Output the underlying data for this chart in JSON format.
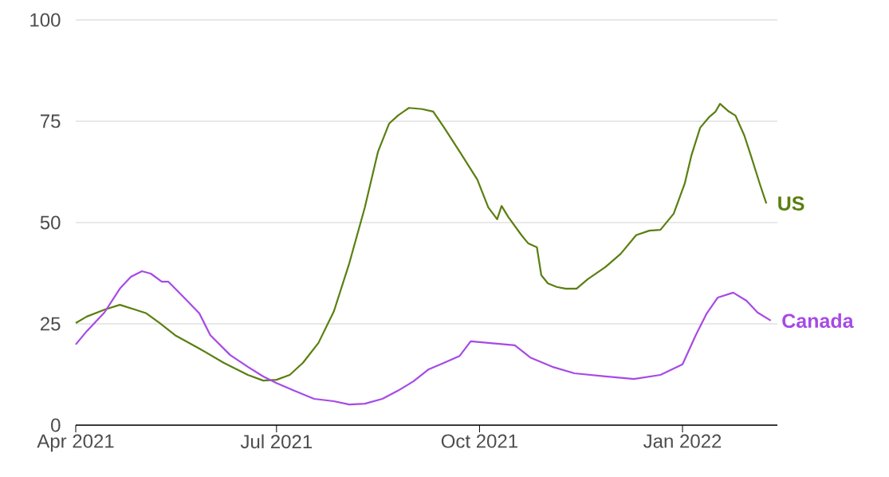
{
  "chart_data": {
    "type": "line",
    "xlim": [
      "2021-04-01",
      "2022-02-13"
    ],
    "xticks": [
      {
        "value": "2021-04-01",
        "label": "Apr 2021"
      },
      {
        "value": "2021-07-01",
        "label": "Jul 2021"
      },
      {
        "value": "2021-10-01",
        "label": "Oct 2021"
      },
      {
        "value": "2022-01-01",
        "label": "Jan 2022"
      }
    ],
    "ylim": [
      0,
      100
    ],
    "yticks": [
      0,
      25,
      50,
      75,
      100
    ],
    "grid": "y",
    "legend": false,
    "marker": "none",
    "line_style": "solid",
    "series": [
      {
        "name": "US",
        "color": "#5a7f10",
        "x": [
          "2021-04-01",
          "2021-04-06",
          "2021-04-14",
          "2021-04-21",
          "2021-04-28",
          "2021-05-03",
          "2021-05-09",
          "2021-05-16",
          "2021-05-27",
          "2021-06-07",
          "2021-06-18",
          "2021-06-25",
          "2021-07-01",
          "2021-07-07",
          "2021-07-13",
          "2021-07-20",
          "2021-07-27",
          "2021-08-03",
          "2021-08-10",
          "2021-08-16",
          "2021-08-21",
          "2021-08-25",
          "2021-08-30",
          "2021-09-05",
          "2021-09-10",
          "2021-09-15",
          "2021-09-22",
          "2021-09-30",
          "2021-10-05",
          "2021-10-09",
          "2021-10-11",
          "2021-10-14",
          "2021-10-20",
          "2021-10-23",
          "2021-10-27",
          "2021-10-29",
          "2021-11-01",
          "2021-11-05",
          "2021-11-09",
          "2021-11-14",
          "2021-11-19",
          "2021-11-27",
          "2021-12-04",
          "2021-12-11",
          "2021-12-17",
          "2021-12-22",
          "2021-12-28",
          "2022-01-02",
          "2022-01-05",
          "2022-01-09",
          "2022-01-13",
          "2022-01-16",
          "2022-01-18",
          "2022-01-22",
          "2022-01-25",
          "2022-01-29",
          "2022-02-01",
          "2022-02-05",
          "2022-02-08"
        ],
        "values": [
          25.2,
          26.8,
          28.5,
          29.7,
          28.5,
          27.6,
          25.2,
          22.2,
          18.9,
          15.4,
          12.4,
          11,
          11.2,
          12.4,
          15.4,
          20.3,
          28.1,
          40,
          53.7,
          67.5,
          74.4,
          76.4,
          78.3,
          78,
          77.4,
          73.4,
          67.5,
          60.6,
          53.7,
          50.8,
          54.1,
          51.4,
          46.9,
          44.9,
          43.9,
          37,
          35,
          34.1,
          33.7,
          33.7,
          36,
          39,
          42.3,
          46.9,
          48,
          48.2,
          52.2,
          59.6,
          66.5,
          73.4,
          76,
          77.4,
          79.3,
          77.4,
          76.4,
          71.5,
          66.5,
          59.6,
          54.7
        ]
      },
      {
        "name": "Canada",
        "color": "#a64ae6",
        "x": [
          "2021-04-01",
          "2021-04-06",
          "2021-04-14",
          "2021-04-21",
          "2021-04-26",
          "2021-05-01",
          "2021-05-05",
          "2021-05-10",
          "2021-05-13",
          "2021-05-19",
          "2021-05-27",
          "2021-06-01",
          "2021-06-10",
          "2021-06-18",
          "2021-06-25",
          "2021-07-01",
          "2021-07-09",
          "2021-07-18",
          "2021-07-27",
          "2021-08-03",
          "2021-08-10",
          "2021-08-18",
          "2021-08-25",
          "2021-09-01",
          "2021-09-08",
          "2021-09-15",
          "2021-09-22",
          "2021-09-27",
          "2021-10-17",
          "2021-10-24",
          "2021-11-03",
          "2021-11-13",
          "2021-11-28",
          "2021-12-10",
          "2021-12-22",
          "2022-01-01",
          "2022-01-07",
          "2022-01-12",
          "2022-01-17",
          "2022-01-24",
          "2022-01-30",
          "2022-02-04",
          "2022-02-10"
        ],
        "values": [
          19.9,
          23.2,
          27.8,
          33.7,
          36.6,
          38,
          37.4,
          35.4,
          35.4,
          32.1,
          27.6,
          22.2,
          17.3,
          14.4,
          12,
          10.4,
          8.5,
          6.5,
          5.9,
          5.1,
          5.3,
          6.5,
          8.5,
          10.8,
          13.8,
          15.4,
          17.1,
          20.7,
          19.7,
          16.7,
          14.4,
          12.8,
          12,
          11.4,
          12.4,
          15,
          22.2,
          27.6,
          31.5,
          32.7,
          30.7,
          27.8,
          25.8
        ]
      }
    ]
  }
}
